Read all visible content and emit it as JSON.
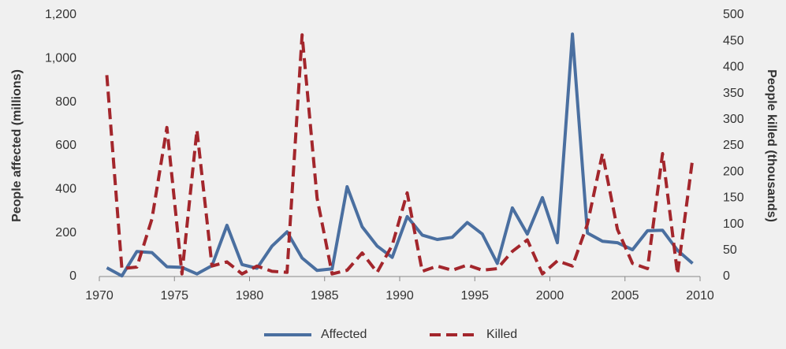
{
  "chart_data": {
    "type": "line",
    "y_label": "People affected (millions)",
    "y2_label": "People killed (thousands)",
    "x": [
      1970.5,
      1971.5,
      1972.5,
      1973.5,
      1974.5,
      1975.5,
      1976.5,
      1977.5,
      1978.5,
      1979.5,
      1980.5,
      1981.5,
      1982.5,
      1983.5,
      1984.5,
      1985.5,
      1986.5,
      1987.5,
      1988.5,
      1989.5,
      1990.5,
      1991.5,
      1992.5,
      1993.5,
      1994.5,
      1995.5,
      1996.5,
      1997.5,
      1998.5,
      1999.5,
      2000.5,
      2001.5,
      2002.5,
      2003.5,
      2004.5,
      2005.5,
      2006.5,
      2007.5,
      2008.5,
      2009.5
    ],
    "series": [
      {
        "name": "Affected",
        "color": "#4a6fa0",
        "dash": false,
        "values": [
          40,
          3,
          115,
          110,
          45,
          42,
          12,
          50,
          235,
          55,
          38,
          140,
          205,
          85,
          28,
          35,
          412,
          228,
          140,
          88,
          275,
          190,
          170,
          180,
          248,
          195,
          60,
          315,
          195,
          362,
          155,
          1112,
          200,
          162,
          155,
          123,
          210,
          212,
          120,
          60
        ]
      },
      {
        "name": "Killed",
        "color": "#a3262c",
        "dash": true,
        "axis": "y2",
        "values": [
          385,
          15,
          18,
          110,
          285,
          5,
          280,
          20,
          28,
          5,
          20,
          10,
          8,
          462,
          150,
          5,
          12,
          45,
          8,
          60,
          160,
          10,
          20,
          12,
          22,
          12,
          15,
          48,
          70,
          5,
          30,
          20,
          100,
          235,
          90,
          25,
          15,
          235,
          5,
          225
        ]
      }
    ],
    "xlim": [
      1970,
      2010
    ],
    "xticks": [
      1970,
      1975,
      1980,
      1985,
      1990,
      1995,
      2000,
      2005,
      2010
    ],
    "ylim": [
      0,
      1200
    ],
    "yticks": [
      0,
      200,
      400,
      600,
      800,
      {
        "value": 1000,
        "label": "1,000"
      },
      {
        "value": 1200,
        "label": "1,200"
      }
    ],
    "y2lim": [
      0,
      500
    ],
    "y2ticks": [
      0,
      50,
      100,
      150,
      200,
      250,
      300,
      350,
      400,
      450,
      500
    ],
    "grid": false,
    "legend": "bottom"
  }
}
